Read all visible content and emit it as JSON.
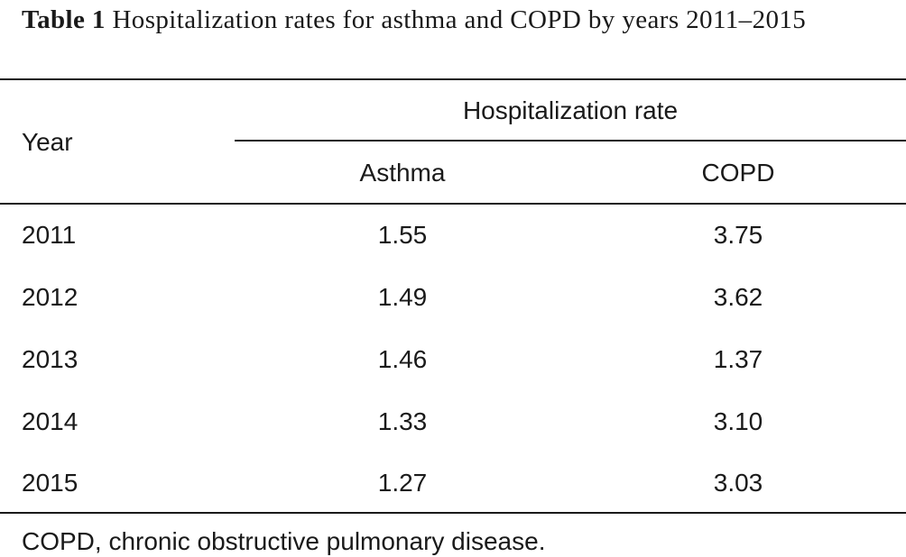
{
  "caption": {
    "label": "Table 1",
    "title": "Hospitalization rates for asthma and COPD by years 2011–2015"
  },
  "table": {
    "header": {
      "row_label": "Year",
      "group_label": "Hospitalization rate",
      "columns": [
        "Asthma",
        "COPD"
      ]
    },
    "rows": [
      {
        "year": "2011",
        "asthma": "1.55",
        "copd": "3.75"
      },
      {
        "year": "2012",
        "asthma": "1.49",
        "copd": "3.62"
      },
      {
        "year": "2013",
        "asthma": "1.46",
        "copd": "1.37"
      },
      {
        "year": "2014",
        "asthma": "1.33",
        "copd": "3.10"
      },
      {
        "year": "2015",
        "asthma": "1.27",
        "copd": "3.03"
      }
    ]
  },
  "footnote": "COPD, chronic obstructive pulmonary disease."
}
